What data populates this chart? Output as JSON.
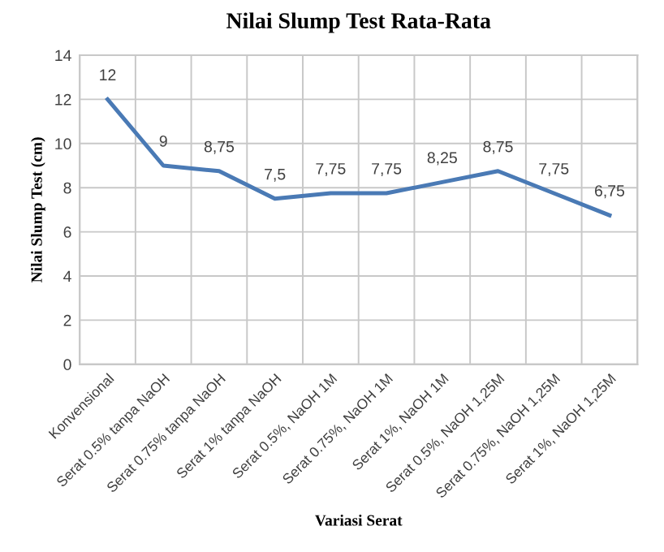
{
  "chart_data": {
    "type": "line",
    "title": "Nilai Slump Test Rata-Rata",
    "xlabel": "Variasi Serat",
    "ylabel": "Nilai Slump Test (cm)",
    "categories": [
      "Konvensional",
      "Serat 0.5% tanpa NaOH",
      "Serat 0.75% tanpa NaOH",
      "Serat 1% tanpa NaOH",
      "Serat 0.5%, NaOH 1M",
      "Serat 0.75%, NaOH 1M",
      "Serat 1%, NaOH 1M",
      "Serat 0.5%, NaOH 1,25M",
      "Serat 0.75%, NaOH 1,25M",
      "Serat 1%, NaOH 1,25M"
    ],
    "series": [
      {
        "color": "#4a7ab5",
        "values": [
          12,
          9,
          8.75,
          7.5,
          7.75,
          7.75,
          8.25,
          8.75,
          7.75,
          6.75
        ],
        "value_labels": [
          "12",
          "9",
          "8,75",
          "7,5",
          "7,75",
          "7,75",
          "8,25",
          "8,75",
          "7,75",
          "6,75"
        ]
      }
    ],
    "ylim": [
      0,
      14
    ],
    "yticks": [
      0,
      2,
      4,
      6,
      8,
      10,
      12,
      14
    ],
    "grid": true,
    "legend": false
  }
}
